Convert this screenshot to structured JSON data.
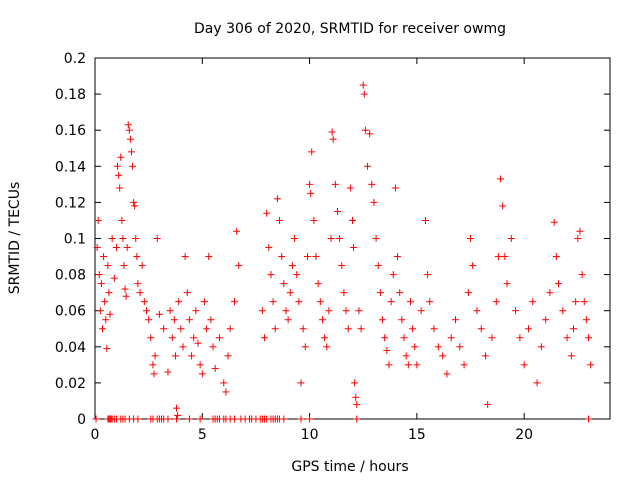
{
  "chart_data": {
    "type": "scatter",
    "title": "Day 306 of 2020, SRMTID for receiver owmg",
    "xlabel": "GPS time / hours",
    "ylabel": "SRMTID / TECUs",
    "xlim": [
      0,
      24
    ],
    "ylim": [
      0,
      0.2
    ],
    "xticks": [
      0,
      5,
      10,
      15,
      20
    ],
    "xtick_labels": [
      "0",
      "5",
      "10",
      "15",
      "20"
    ],
    "yticks": [
      0,
      0.02,
      0.04,
      0.06,
      0.08,
      0.1,
      0.12,
      0.14,
      0.16,
      0.18,
      0.2
    ],
    "ytick_labels": [
      "0",
      "0.02",
      "0.04",
      "0.06",
      "0.08",
      "0.1",
      "0.12",
      "0.14",
      "0.16",
      "0.18",
      "0.2"
    ],
    "marker": "+",
    "color": "#ff0000",
    "series": [
      {
        "name": "SRMTID",
        "points": [
          [
            0.1,
            0.095
          ],
          [
            0.15,
            0.11
          ],
          [
            0.2,
            0.08
          ],
          [
            0.25,
            0.06
          ],
          [
            0.3,
            0.075
          ],
          [
            0.35,
            0.05
          ],
          [
            0.4,
            0.09
          ],
          [
            0.45,
            0.065
          ],
          [
            0.5,
            0.055
          ],
          [
            0.55,
            0.039
          ],
          [
            0.6,
            0.085
          ],
          [
            0.65,
            0.07
          ],
          [
            0.7,
            0.058
          ],
          [
            0.8,
            0.1
          ],
          [
            0.9,
            0.078
          ],
          [
            1.0,
            0.095
          ],
          [
            1.05,
            0.14
          ],
          [
            1.1,
            0.135
          ],
          [
            1.15,
            0.128
          ],
          [
            1.2,
            0.145
          ],
          [
            1.25,
            0.11
          ],
          [
            1.3,
            0.1
          ],
          [
            1.35,
            0.085
          ],
          [
            1.4,
            0.072
          ],
          [
            1.45,
            0.068
          ],
          [
            1.5,
            0.095
          ],
          [
            1.55,
            0.163
          ],
          [
            1.6,
            0.16
          ],
          [
            1.65,
            0.155
          ],
          [
            1.7,
            0.148
          ],
          [
            1.75,
            0.14
          ],
          [
            1.8,
            0.12
          ],
          [
            1.85,
            0.118
          ],
          [
            1.9,
            0.1
          ],
          [
            1.95,
            0.09
          ],
          [
            2.0,
            0.075
          ],
          [
            2.1,
            0.07
          ],
          [
            2.2,
            0.085
          ],
          [
            2.3,
            0.065
          ],
          [
            2.4,
            0.06
          ],
          [
            2.5,
            0.055
          ],
          [
            2.6,
            0.045
          ],
          [
            2.7,
            0.03
          ],
          [
            2.75,
            0.025
          ],
          [
            2.8,
            0.035
          ],
          [
            2.9,
            0.1
          ],
          [
            3.0,
            0.058
          ],
          [
            3.2,
            0.05
          ],
          [
            3.4,
            0.026
          ],
          [
            3.5,
            0.06
          ],
          [
            3.6,
            0.045
          ],
          [
            3.7,
            0.055
          ],
          [
            3.75,
            0.035
          ],
          [
            3.8,
            0.006
          ],
          [
            3.85,
            0.002
          ],
          [
            3.9,
            0.065
          ],
          [
            4.0,
            0.05
          ],
          [
            4.1,
            0.04
          ],
          [
            4.2,
            0.09
          ],
          [
            4.3,
            0.07
          ],
          [
            4.4,
            0.055
          ],
          [
            4.5,
            0.035
          ],
          [
            4.6,
            0.045
          ],
          [
            4.7,
            0.06
          ],
          [
            4.8,
            0.042
          ],
          [
            4.9,
            0.03
          ],
          [
            5.0,
            0.025
          ],
          [
            5.1,
            0.065
          ],
          [
            5.2,
            0.05
          ],
          [
            5.3,
            0.09
          ],
          [
            5.4,
            0.055
          ],
          [
            5.5,
            0.04
          ],
          [
            5.6,
            0.028
          ],
          [
            5.8,
            0.045
          ],
          [
            6.0,
            0.02
          ],
          [
            6.1,
            0.015
          ],
          [
            6.2,
            0.035
          ],
          [
            6.3,
            0.05
          ],
          [
            6.5,
            0.065
          ],
          [
            6.6,
            0.104
          ],
          [
            6.7,
            0.085
          ],
          [
            7.8,
            0.06
          ],
          [
            7.9,
            0.045
          ],
          [
            8.0,
            0.114
          ],
          [
            8.1,
            0.095
          ],
          [
            8.2,
            0.08
          ],
          [
            8.3,
            0.065
          ],
          [
            8.4,
            0.05
          ],
          [
            8.5,
            0.122
          ],
          [
            8.6,
            0.11
          ],
          [
            8.7,
            0.09
          ],
          [
            8.8,
            0.075
          ],
          [
            8.9,
            0.06
          ],
          [
            9.0,
            0.055
          ],
          [
            9.1,
            0.07
          ],
          [
            9.2,
            0.085
          ],
          [
            9.3,
            0.1
          ],
          [
            9.4,
            0.08
          ],
          [
            9.5,
            0.065
          ],
          [
            9.6,
            0.02
          ],
          [
            9.7,
            0.05
          ],
          [
            9.8,
            0.04
          ],
          [
            9.9,
            0.09
          ],
          [
            10.0,
            0.13
          ],
          [
            10.05,
            0.125
          ],
          [
            10.1,
            0.148
          ],
          [
            10.2,
            0.11
          ],
          [
            10.3,
            0.09
          ],
          [
            10.4,
            0.075
          ],
          [
            10.5,
            0.065
          ],
          [
            10.6,
            0.055
          ],
          [
            10.7,
            0.045
          ],
          [
            10.8,
            0.04
          ],
          [
            10.9,
            0.06
          ],
          [
            11.0,
            0.1
          ],
          [
            11.05,
            0.159
          ],
          [
            11.1,
            0.155
          ],
          [
            11.2,
            0.13
          ],
          [
            11.3,
            0.115
          ],
          [
            11.4,
            0.1
          ],
          [
            11.5,
            0.085
          ],
          [
            11.6,
            0.07
          ],
          [
            11.7,
            0.06
          ],
          [
            11.8,
            0.05
          ],
          [
            11.9,
            0.128
          ],
          [
            12.0,
            0.11
          ],
          [
            12.05,
            0.095
          ],
          [
            12.1,
            0.02
          ],
          [
            12.15,
            0.012
          ],
          [
            12.2,
            0.008
          ],
          [
            12.3,
            0.06
          ],
          [
            12.4,
            0.05
          ],
          [
            12.5,
            0.185
          ],
          [
            12.55,
            0.18
          ],
          [
            12.6,
            0.16
          ],
          [
            12.7,
            0.14
          ],
          [
            12.8,
            0.158
          ],
          [
            12.9,
            0.13
          ],
          [
            13.0,
            0.12
          ],
          [
            13.1,
            0.1
          ],
          [
            13.2,
            0.085
          ],
          [
            13.3,
            0.07
          ],
          [
            13.4,
            0.055
          ],
          [
            13.5,
            0.045
          ],
          [
            13.6,
            0.038
          ],
          [
            13.7,
            0.03
          ],
          [
            13.8,
            0.065
          ],
          [
            13.9,
            0.08
          ],
          [
            14.0,
            0.128
          ],
          [
            14.1,
            0.09
          ],
          [
            14.2,
            0.07
          ],
          [
            14.3,
            0.055
          ],
          [
            14.4,
            0.045
          ],
          [
            14.5,
            0.035
          ],
          [
            14.6,
            0.03
          ],
          [
            14.7,
            0.065
          ],
          [
            14.8,
            0.05
          ],
          [
            14.9,
            0.04
          ],
          [
            15.0,
            0.03
          ],
          [
            15.2,
            0.06
          ],
          [
            15.4,
            0.11
          ],
          [
            15.5,
            0.08
          ],
          [
            15.6,
            0.065
          ],
          [
            15.8,
            0.05
          ],
          [
            16.0,
            0.04
          ],
          [
            16.2,
            0.035
          ],
          [
            16.4,
            0.025
          ],
          [
            16.6,
            0.045
          ],
          [
            16.8,
            0.055
          ],
          [
            17.0,
            0.04
          ],
          [
            17.2,
            0.03
          ],
          [
            17.4,
            0.07
          ],
          [
            17.5,
            0.1
          ],
          [
            17.6,
            0.085
          ],
          [
            17.8,
            0.06
          ],
          [
            18.0,
            0.05
          ],
          [
            18.2,
            0.035
          ],
          [
            18.3,
            0.008
          ],
          [
            18.5,
            0.045
          ],
          [
            18.7,
            0.065
          ],
          [
            18.8,
            0.09
          ],
          [
            18.9,
            0.133
          ],
          [
            19.0,
            0.118
          ],
          [
            19.1,
            0.09
          ],
          [
            19.2,
            0.075
          ],
          [
            19.4,
            0.1
          ],
          [
            19.6,
            0.06
          ],
          [
            19.8,
            0.045
          ],
          [
            20.0,
            0.03
          ],
          [
            20.2,
            0.05
          ],
          [
            20.4,
            0.065
          ],
          [
            20.6,
            0.02
          ],
          [
            20.8,
            0.04
          ],
          [
            21.0,
            0.055
          ],
          [
            21.2,
            0.07
          ],
          [
            21.4,
            0.109
          ],
          [
            21.5,
            0.09
          ],
          [
            21.6,
            0.075
          ],
          [
            21.8,
            0.06
          ],
          [
            22.0,
            0.045
          ],
          [
            22.2,
            0.035
          ],
          [
            22.3,
            0.05
          ],
          [
            22.4,
            0.065
          ],
          [
            22.5,
            0.1
          ],
          [
            22.6,
            0.104
          ],
          [
            22.7,
            0.08
          ],
          [
            22.8,
            0.065
          ],
          [
            22.9,
            0.055
          ],
          [
            23.0,
            0.045
          ],
          [
            23.1,
            0.03
          ]
        ],
        "zero_points_x": [
          0.05,
          0.6,
          0.65,
          0.7,
          0.75,
          0.8,
          0.9,
          1.0,
          1.2,
          1.3,
          1.4,
          1.6,
          1.8,
          2.0,
          2.6,
          2.7,
          2.9,
          3.0,
          3.1,
          3.2,
          3.4,
          3.8,
          4.4,
          4.9,
          5.5,
          5.6,
          5.7,
          5.8,
          6.0,
          6.1,
          6.3,
          6.5,
          6.8,
          7.0,
          7.2,
          7.3,
          7.5,
          7.7,
          7.8,
          7.9,
          8.0,
          8.2,
          8.3,
          8.4,
          8.5,
          8.6,
          8.8,
          9.6,
          10.0,
          12.2,
          23.0
        ]
      }
    ]
  }
}
